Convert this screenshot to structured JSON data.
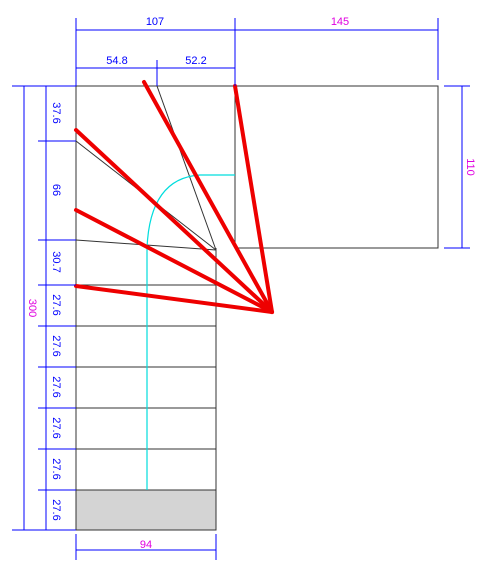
{
  "dimensions": {
    "top_overall": [
      "107",
      "145"
    ],
    "top_detail": [
      "54.8",
      "52.2"
    ],
    "right": "110",
    "left_overall": "300",
    "left_steps": [
      "37.6",
      "66",
      "30.7",
      "27.6",
      "27.6",
      "27.6",
      "27.6",
      "27.6",
      "27.6"
    ],
    "bottom": "94"
  }
}
